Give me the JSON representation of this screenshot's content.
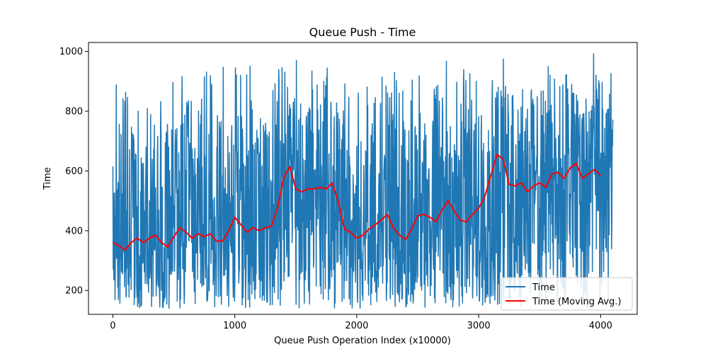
{
  "chart_data": {
    "type": "line",
    "title": "Queue Push - Time",
    "xlabel": "Queue Push Operation Index (x10000)",
    "ylabel": "Time",
    "xlim": [
      -200,
      4300
    ],
    "ylim": [
      120,
      1030
    ],
    "x_ticks": [
      0,
      1000,
      2000,
      3000,
      4000
    ],
    "y_ticks": [
      200,
      400,
      600,
      800,
      1000
    ],
    "x_tick_labels": [
      "0",
      "1000",
      "2000",
      "3000",
      "4000"
    ],
    "y_tick_labels": [
      "200",
      "400",
      "600",
      "800",
      "1000"
    ],
    "grid": false,
    "legend": {
      "position": "bottom-right"
    },
    "raw_series": {
      "name": "Time",
      "color": "#1f77b4",
      "x_range": [
        0,
        4100
      ],
      "min": 140,
      "max": 995,
      "description": "noisy per-operation time samples (~4100 points)"
    },
    "series": [
      {
        "name": "Time (Moving Avg.)",
        "color": "#ff0000",
        "x": [
          0,
          50,
          100,
          150,
          200,
          250,
          300,
          350,
          400,
          450,
          500,
          550,
          600,
          650,
          700,
          750,
          800,
          850,
          900,
          950,
          1000,
          1050,
          1100,
          1150,
          1200,
          1250,
          1300,
          1350,
          1400,
          1450,
          1500,
          1550,
          1600,
          1650,
          1700,
          1750,
          1800,
          1850,
          1900,
          1950,
          2000,
          2050,
          2100,
          2150,
          2200,
          2250,
          2300,
          2350,
          2400,
          2450,
          2500,
          2550,
          2600,
          2650,
          2700,
          2750,
          2800,
          2850,
          2900,
          2950,
          3000,
          3050,
          3100,
          3150,
          3200,
          3250,
          3300,
          3350,
          3400,
          3450,
          3500,
          3550,
          3600,
          3650,
          3700,
          3750,
          3800,
          3850,
          3900,
          3950,
          4000
        ],
        "values": [
          360,
          350,
          335,
          360,
          375,
          360,
          375,
          385,
          360,
          345,
          380,
          410,
          395,
          375,
          390,
          380,
          390,
          365,
          365,
          400,
          445,
          420,
          395,
          410,
          400,
          410,
          415,
          475,
          575,
          615,
          540,
          530,
          540,
          540,
          545,
          540,
          560,
          495,
          405,
          395,
          375,
          385,
          405,
          420,
          435,
          455,
          410,
          385,
          370,
          405,
          450,
          455,
          445,
          430,
          470,
          500,
          465,
          435,
          430,
          455,
          475,
          515,
          585,
          655,
          640,
          555,
          550,
          560,
          530,
          550,
          560,
          545,
          590,
          595,
          575,
          610,
          625,
          575,
          590,
          605,
          585
        ]
      }
    ]
  }
}
